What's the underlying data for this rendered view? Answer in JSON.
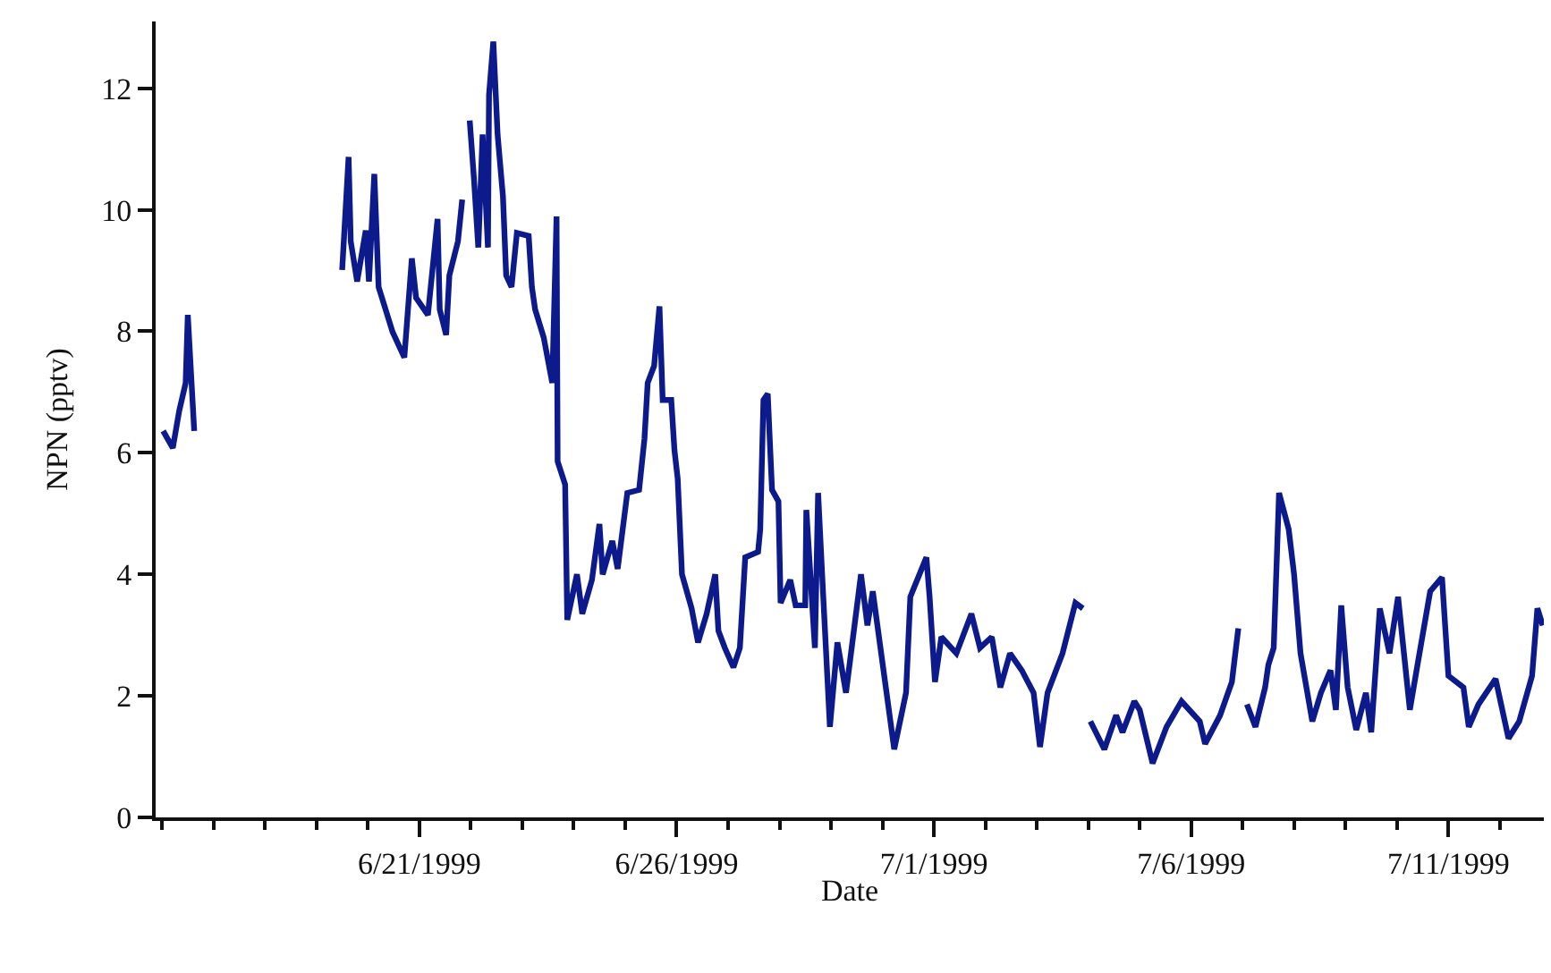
{
  "chart_data": {
    "type": "line",
    "xlabel": "Date",
    "ylabel": "NPN (pptv)",
    "xlim": [
      "1999-06-15T21:00",
      "1999-07-12T20:30"
    ],
    "xticks": [
      {
        "value": "1999-06-16",
        "label": null
      },
      {
        "value": "1999-06-17",
        "label": null
      },
      {
        "value": "1999-06-18",
        "label": null
      },
      {
        "value": "1999-06-19",
        "label": null
      },
      {
        "value": "1999-06-20",
        "label": null
      },
      {
        "value": "1999-06-21",
        "label": "6/21/1999"
      },
      {
        "value": "1999-06-22",
        "label": null
      },
      {
        "value": "1999-06-23",
        "label": null
      },
      {
        "value": "1999-06-24",
        "label": null
      },
      {
        "value": "1999-06-25",
        "label": null
      },
      {
        "value": "1999-06-26",
        "label": "6/26/1999"
      },
      {
        "value": "1999-06-27",
        "label": null
      },
      {
        "value": "1999-06-28",
        "label": null
      },
      {
        "value": "1999-06-29",
        "label": null
      },
      {
        "value": "1999-06-30",
        "label": null
      },
      {
        "value": "1999-07-01",
        "label": "7/1/1999"
      },
      {
        "value": "1999-07-02",
        "label": null
      },
      {
        "value": "1999-07-03",
        "label": null
      },
      {
        "value": "1999-07-04",
        "label": null
      },
      {
        "value": "1999-07-05",
        "label": null
      },
      {
        "value": "1999-07-06",
        "label": "7/6/1999"
      },
      {
        "value": "1999-07-07",
        "label": null
      },
      {
        "value": "1999-07-08",
        "label": null
      },
      {
        "value": "1999-07-09",
        "label": null
      },
      {
        "value": "1999-07-10",
        "label": null
      },
      {
        "value": "1999-07-11",
        "label": "7/11/1999"
      },
      {
        "value": "1999-07-12",
        "label": null
      }
    ],
    "ylim": [
      0,
      13.1
    ],
    "yticks": [
      0,
      2,
      4,
      6,
      8,
      10,
      12
    ],
    "marker": "none",
    "line_style": "solid",
    "x": [
      "1999-06-16T00:30",
      "1999-06-16T05:00",
      "1999-06-16T08:00",
      "1999-06-16T11:00",
      "1999-06-16T12:00",
      "1999-06-16T15:00",
      "1999-06-18T00:00",
      "1999-06-19T12:00",
      "1999-06-19T15:00",
      "1999-06-19T16:00",
      "1999-06-19T19:00",
      "1999-06-19T23:00",
      "1999-06-20T00:30",
      "1999-06-20T03:00",
      "1999-06-20T05:00",
      "1999-06-20T11:30",
      "1999-06-20T17:00",
      "1999-06-20T20:30",
      "1999-06-20T22:30",
      "1999-06-21T04:00",
      "1999-06-21T08:30",
      "1999-06-21T09:30",
      "1999-06-21T12:30",
      "1999-06-21T14:00",
      "1999-06-21T18:00",
      "1999-06-21T20:00",
      "1999-06-21T21:30",
      "1999-06-21T23:30",
      "1999-06-22T01:30",
      "1999-06-22T03:30",
      "1999-06-22T05:30",
      "1999-06-22T08:00",
      "1999-06-22T08:30",
      "1999-06-22T10:30",
      "1999-06-22T12:30",
      "1999-06-22T15:00",
      "1999-06-22T16:30",
      "1999-06-22T19:00",
      "1999-06-22T21:30",
      "1999-06-23T03:00",
      "1999-06-23T04:30",
      "1999-06-23T06:00",
      "1999-06-23T10:00",
      "1999-06-23T14:00",
      "1999-06-23T16:00",
      "1999-06-23T16:30",
      "1999-06-23T20:00",
      "1999-06-23T21:00",
      "1999-06-24T01:30",
      "1999-06-24T04:00",
      "1999-06-24T08:30",
      "1999-06-24T12:00",
      "1999-06-24T13:30",
      "1999-06-24T18:00",
      "1999-06-24T20:30",
      "1999-06-25T01:00",
      "1999-06-25T06:30",
      "1999-06-25T09:00",
      "1999-06-25T10:30",
      "1999-06-25T13:30",
      "1999-06-25T16:00",
      "1999-06-25T17:30",
      "1999-06-25T21:30",
      "1999-06-25T23:00",
      "1999-06-26T00:30",
      "1999-06-26T02:30",
      "1999-06-26T07:00",
      "1999-06-26T10:00",
      "1999-06-26T14:00",
      "1999-06-26T18:00",
      "1999-06-26T19:30",
      "1999-06-26T22:30",
      "1999-06-27T02:30",
      "1999-06-27T05:30",
      "1999-06-27T08:00",
      "1999-06-27T14:00",
      "1999-06-27T15:00",
      "1999-06-27T16:30",
      "1999-06-27T18:30",
      "1999-06-27T20:30",
      "1999-06-27T23:30",
      "1999-06-28T00:30",
      "1999-06-28T05:00",
      "1999-06-28T07:30",
      "1999-06-28T12:00",
      "1999-06-28T12:30",
      "1999-06-28T16:30",
      "1999-06-28T18:00",
      "1999-06-28T20:00",
      "1999-06-28T23:30",
      "1999-06-29T03:00",
      "1999-06-29T07:00",
      "1999-06-29T14:00",
      "1999-06-29T17:00",
      "1999-06-29T19:30",
      "1999-06-30T05:30",
      "1999-06-30T11:00",
      "1999-06-30T13:00",
      "1999-06-30T20:30",
      "1999-06-30T22:00",
      "1999-07-01T00:30",
      "1999-07-01T03:30",
      "1999-07-01T10:30",
      "1999-07-01T17:30",
      "1999-07-01T21:30",
      "1999-07-02T03:00",
      "1999-07-02T07:00",
      "1999-07-02T11:30",
      "1999-07-02T17:00",
      "1999-07-02T22:30",
      "1999-07-03T01:30",
      "1999-07-03T05:00",
      "1999-07-03T12:00",
      "1999-07-03T18:00",
      "1999-07-03T21:30",
      "1999-07-03T23:00",
      "1999-07-04T01:00",
      "1999-07-04T07:30",
      "1999-07-04T13:00",
      "1999-07-04T16:00",
      "1999-07-04T21:30",
      "1999-07-05T00:00",
      "1999-07-05T06:00",
      "1999-07-05T12:30",
      "1999-07-05T19:30",
      "1999-07-06T04:00",
      "1999-07-06T06:30",
      "1999-07-06T13:30",
      "1999-07-06T19:00",
      "1999-07-06T22:00",
      "1999-07-07T00:00",
      "1999-07-07T02:00",
      "1999-07-07T06:00",
      "1999-07-07T10:30",
      "1999-07-07T12:00",
      "1999-07-07T14:30",
      "1999-07-07T17:00",
      "1999-07-07T21:30",
      "1999-07-08T00:00",
      "1999-07-08T03:00",
      "1999-07-08T08:30",
      "1999-07-08T12:30",
      "1999-07-08T17:00",
      "1999-07-08T19:30",
      "1999-07-08T22:00",
      "1999-07-09T01:00",
      "1999-07-09T05:00",
      "1999-07-09T09:30",
      "1999-07-09T12:00",
      "1999-07-09T16:00",
      "1999-07-09T20:30",
      "1999-07-10T00:30",
      "1999-07-10T06:00",
      "1999-07-10T10:00",
      "1999-07-10T15:30",
      "1999-07-10T21:00",
      "1999-07-11T00:00",
      "1999-07-11T07:00",
      "1999-07-11T09:30",
      "1999-07-11T14:00",
      "1999-07-11T22:00",
      "1999-07-12T04:00",
      "1999-07-12T09:00",
      "1999-07-12T15:00",
      "1999-07-12T17:30",
      "1999-07-12T20:00"
    ],
    "series": [
      {
        "color": "#0d1a8c",
        "values": [
          6.36,
          6.08,
          6.69,
          7.15,
          8.27,
          6.36,
          null,
          9.01,
          10.87,
          9.48,
          8.82,
          9.66,
          8.82,
          10.59,
          8.73,
          7.99,
          7.57,
          9.2,
          8.55,
          8.27,
          9.85,
          8.36,
          7.94,
          8.92,
          9.48,
          10.17,
          null,
          11.47,
          10.5,
          9.38,
          11.24,
          9.38,
          11.89,
          12.77,
          11.24,
          10.22,
          8.92,
          8.73,
          9.62,
          9.57,
          8.73,
          8.36,
          7.9,
          7.15,
          9.89,
          5.86,
          5.48,
          3.25,
          4.0,
          3.35,
          3.91,
          4.83,
          4.0,
          4.55,
          4.09,
          5.34,
          5.39,
          6.23,
          7.15,
          7.43,
          8.41,
          6.87,
          6.87,
          6.04,
          5.58,
          4.0,
          3.44,
          2.88,
          3.35,
          4.0,
          3.07,
          2.79,
          2.47,
          2.79,
          4.28,
          4.37,
          4.74,
          6.87,
          6.97,
          5.39,
          5.2,
          3.53,
          3.91,
          3.49,
          3.49,
          5.06,
          2.79,
          5.34,
          3.91,
          1.49,
          2.88,
          2.05,
          4.0,
          3.16,
          3.72,
          1.12,
          2.05,
          3.63,
          4.28,
          3.63,
          2.23,
          2.97,
          2.7,
          3.35,
          2.79,
          2.97,
          2.14,
          2.7,
          2.42,
          2.05,
          1.16,
          2.05,
          2.7,
          3.53,
          3.44,
          null,
          1.58,
          1.12,
          1.68,
          1.4,
          1.91,
          1.77,
          0.89,
          1.49,
          1.91,
          1.58,
          1.21,
          1.68,
          2.23,
          3.11,
          null,
          1.86,
          1.49,
          2.14,
          2.51,
          2.79,
          5.34,
          4.74,
          4.0,
          2.7,
          1.58,
          2.05,
          2.42,
          1.77,
          3.49,
          2.14,
          1.44,
          2.05,
          1.4,
          3.44,
          2.7,
          3.63,
          1.77,
          2.6,
          3.72,
          3.95,
          2.33,
          2.14,
          1.49,
          1.86,
          2.28,
          1.3,
          1.58,
          2.33,
          3.44,
          3.16
        ]
      }
    ]
  }
}
